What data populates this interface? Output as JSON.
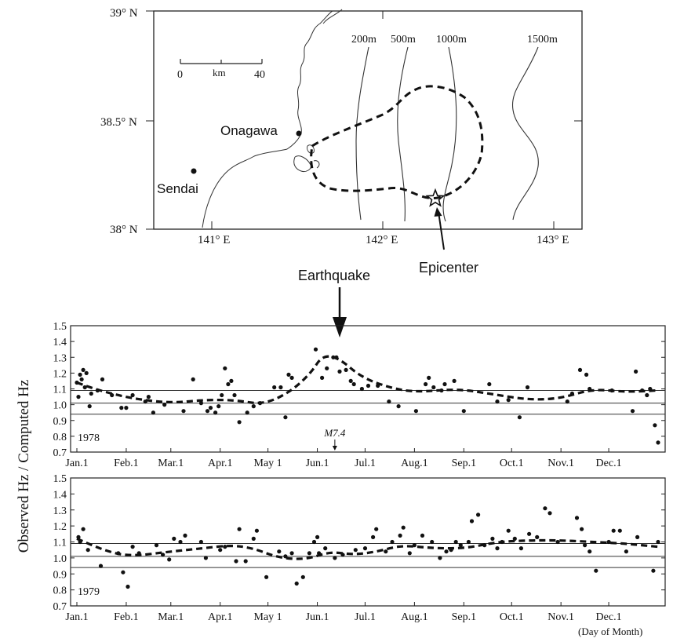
{
  "map": {
    "lat_labels": [
      "39° N",
      "38.5° N",
      "38° N"
    ],
    "lon_labels": [
      "141° E",
      "142° E",
      "143° E"
    ],
    "scale": {
      "start": "0",
      "unit": "km",
      "end": "40"
    },
    "places": [
      "Onagawa",
      "Sendai"
    ],
    "depth_labels": [
      "200m",
      "500m",
      "1000m",
      "1500m"
    ],
    "epicenter_label": "Epicenter"
  },
  "earthquake_label": "Earthquake",
  "ylabel": "Observed Hz / Computed Hz",
  "xnote": "(Day of Month)",
  "chart_data": [
    {
      "type": "scatter",
      "year": "1978",
      "ylim": [
        0.7,
        1.5
      ],
      "yticks": [
        "1.5",
        "1.4",
        "1.3",
        "1.2",
        "1.1",
        "1.0",
        "0.9",
        "0.8",
        "0.7"
      ],
      "hlines": [
        1.09,
        1.01,
        0.94
      ],
      "annotation": {
        "label": "M7.4",
        "day": 163
      },
      "months": [
        "Jan.1",
        "Feb.1",
        "Mar.1",
        "Apr.1",
        "May 1",
        "Jun.1",
        "Jul.1",
        "Aug.1",
        "Sep.1",
        "Oct.1",
        "Nov.1",
        "Dec.1"
      ],
      "month_days": [
        1,
        32,
        60,
        91,
        121,
        152,
        182,
        213,
        244,
        274,
        305,
        335
      ],
      "points": [
        [
          1,
          1.14
        ],
        [
          2,
          1.05
        ],
        [
          3,
          1.19
        ],
        [
          4,
          1.16
        ],
        [
          5,
          1.22
        ],
        [
          6,
          1.11
        ],
        [
          7,
          1.2
        ],
        [
          9,
          0.99
        ],
        [
          10,
          1.07
        ],
        [
          14,
          1.09
        ],
        [
          17,
          1.16
        ],
        [
          23,
          1.06
        ],
        [
          29,
          0.98
        ],
        [
          32,
          0.98
        ],
        [
          36,
          1.06
        ],
        [
          44,
          1.02
        ],
        [
          46,
          1.05
        ],
        [
          49,
          0.95
        ],
        [
          56,
          1.0
        ],
        [
          68,
          0.96
        ],
        [
          74,
          1.16
        ],
        [
          79,
          1.01
        ],
        [
          83,
          0.96
        ],
        [
          85,
          0.98
        ],
        [
          88,
          0.95
        ],
        [
          90,
          0.99
        ],
        [
          92,
          1.06
        ],
        [
          94,
          1.23
        ],
        [
          96,
          1.13
        ],
        [
          98,
          1.15
        ],
        [
          100,
          1.06
        ],
        [
          103,
          0.89
        ],
        [
          108,
          0.95
        ],
        [
          112,
          0.99
        ],
        [
          116,
          1.01
        ],
        [
          125,
          1.11
        ],
        [
          129,
          1.11
        ],
        [
          132,
          0.92
        ],
        [
          134,
          1.19
        ],
        [
          136,
          1.17
        ],
        [
          151,
          1.35
        ],
        [
          155,
          1.17
        ],
        [
          158,
          1.23
        ],
        [
          162,
          1.3
        ],
        [
          164,
          1.3
        ],
        [
          166,
          1.21
        ],
        [
          170,
          1.22
        ],
        [
          173,
          1.15
        ],
        [
          175,
          1.13
        ],
        [
          180,
          1.1
        ],
        [
          184,
          1.12
        ],
        [
          190,
          1.12
        ],
        [
          197,
          1.02
        ],
        [
          203,
          0.99
        ],
        [
          214,
          0.96
        ],
        [
          220,
          1.13
        ],
        [
          222,
          1.17
        ],
        [
          225,
          1.11
        ],
        [
          230,
          1.09
        ],
        [
          232,
          1.13
        ],
        [
          238,
          1.15
        ],
        [
          244,
          0.96
        ],
        [
          260,
          1.13
        ],
        [
          265,
          1.02
        ],
        [
          272,
          1.03
        ],
        [
          279,
          0.92
        ],
        [
          284,
          1.11
        ],
        [
          309,
          1.02
        ],
        [
          312,
          1.07
        ],
        [
          317,
          1.22
        ],
        [
          321,
          1.19
        ],
        [
          323,
          1.1
        ],
        [
          337,
          1.09
        ],
        [
          350,
          0.96
        ],
        [
          352,
          1.21
        ],
        [
          356,
          1.09
        ],
        [
          359,
          1.06
        ],
        [
          361,
          1.1
        ],
        [
          364,
          0.87
        ],
        [
          366,
          0.76
        ]
      ],
      "trend": [
        [
          1,
          1.14
        ],
        [
          15,
          1.09
        ],
        [
          35,
          1.04
        ],
        [
          60,
          1.01
        ],
        [
          80,
          1.03
        ],
        [
          100,
          1.03
        ],
        [
          118,
          1.0
        ],
        [
          135,
          1.08
        ],
        [
          148,
          1.2
        ],
        [
          155,
          1.31
        ],
        [
          165,
          1.3
        ],
        [
          180,
          1.17
        ],
        [
          200,
          1.1
        ],
        [
          215,
          1.08
        ],
        [
          240,
          1.1
        ],
        [
          260,
          1.07
        ],
        [
          285,
          1.03
        ],
        [
          305,
          1.04
        ],
        [
          325,
          1.1
        ],
        [
          345,
          1.08
        ],
        [
          365,
          1.09
        ]
      ]
    },
    {
      "type": "scatter",
      "year": "1979",
      "ylim": [
        0.7,
        1.5
      ],
      "yticks": [
        "1.5",
        "1.4",
        "1.3",
        "1.2",
        "1.1",
        "1.0",
        "0.9",
        "0.8",
        "0.7"
      ],
      "hlines": [
        1.09,
        1.01,
        0.94
      ],
      "months": [
        "Jan.1",
        "Feb.1",
        "Mar.1",
        "Apr.1",
        "May 1",
        "Jun.1",
        "Jul.1",
        "Aug.1",
        "Sep.1",
        "Oct.1",
        "Nov.1",
        "Dec.1"
      ],
      "month_days": [
        1,
        32,
        60,
        91,
        121,
        152,
        182,
        213,
        244,
        274,
        305,
        335
      ],
      "points": [
        [
          2,
          1.13
        ],
        [
          3,
          1.1
        ],
        [
          5,
          1.18
        ],
        [
          8,
          1.05
        ],
        [
          16,
          0.95
        ],
        [
          27,
          1.03
        ],
        [
          30,
          0.91
        ],
        [
          33,
          0.82
        ],
        [
          36,
          1.07
        ],
        [
          40,
          1.03
        ],
        [
          51,
          1.08
        ],
        [
          55,
          1.02
        ],
        [
          59,
          0.99
        ],
        [
          62,
          1.12
        ],
        [
          66,
          1.1
        ],
        [
          69,
          1.14
        ],
        [
          79,
          1.1
        ],
        [
          82,
          1.0
        ],
        [
          91,
          1.05
        ],
        [
          94,
          1.07
        ],
        [
          101,
          0.98
        ],
        [
          103,
          1.18
        ],
        [
          107,
          0.98
        ],
        [
          112,
          1.12
        ],
        [
          114,
          1.17
        ],
        [
          120,
          0.88
        ],
        [
          128,
          1.04
        ],
        [
          132,
          1.01
        ],
        [
          136,
          1.03
        ],
        [
          139,
          0.84
        ],
        [
          143,
          0.88
        ],
        [
          147,
          1.03
        ],
        [
          150,
          1.1
        ],
        [
          152,
          1.13
        ],
        [
          153,
          1.03
        ],
        [
          157,
          1.06
        ],
        [
          163,
          1.0
        ],
        [
          168,
          1.02
        ],
        [
          176,
          1.05
        ],
        [
          182,
          1.06
        ],
        [
          187,
          1.13
        ],
        [
          189,
          1.18
        ],
        [
          195,
          1.04
        ],
        [
          199,
          1.1
        ],
        [
          204,
          1.14
        ],
        [
          206,
          1.19
        ],
        [
          210,
          1.03
        ],
        [
          213,
          1.08
        ],
        [
          218,
          1.14
        ],
        [
          224,
          1.1
        ],
        [
          229,
          1.0
        ],
        [
          233,
          1.04
        ],
        [
          236,
          1.05
        ],
        [
          239,
          1.1
        ],
        [
          242,
          1.08
        ],
        [
          247,
          1.1
        ],
        [
          249,
          1.23
        ],
        [
          253,
          1.27
        ],
        [
          257,
          1.08
        ],
        [
          262,
          1.12
        ],
        [
          265,
          1.06
        ],
        [
          268,
          1.1
        ],
        [
          272,
          1.17
        ],
        [
          276,
          1.12
        ],
        [
          280,
          1.06
        ],
        [
          285,
          1.15
        ],
        [
          290,
          1.13
        ],
        [
          295,
          1.31
        ],
        [
          298,
          1.28
        ],
        [
          303,
          1.1
        ],
        [
          315,
          1.25
        ],
        [
          318,
          1.18
        ],
        [
          320,
          1.08
        ],
        [
          323,
          1.04
        ],
        [
          327,
          0.92
        ],
        [
          335,
          1.1
        ],
        [
          338,
          1.17
        ],
        [
          342,
          1.17
        ],
        [
          346,
          1.04
        ],
        [
          353,
          1.13
        ],
        [
          363,
          0.92
        ],
        [
          366,
          1.1
        ]
      ],
      "trend": [
        [
          1,
          1.12
        ],
        [
          20,
          1.04
        ],
        [
          35,
          1.01
        ],
        [
          60,
          1.04
        ],
        [
          80,
          1.06
        ],
        [
          98,
          1.08
        ],
        [
          112,
          1.06
        ],
        [
          128,
          1.0
        ],
        [
          145,
          0.99
        ],
        [
          160,
          1.04
        ],
        [
          175,
          1.02
        ],
        [
          190,
          1.04
        ],
        [
          205,
          1.08
        ],
        [
          225,
          1.06
        ],
        [
          245,
          1.06
        ],
        [
          265,
          1.1
        ],
        [
          285,
          1.11
        ],
        [
          305,
          1.11
        ],
        [
          325,
          1.1
        ],
        [
          345,
          1.09
        ],
        [
          366,
          1.07
        ]
      ]
    }
  ]
}
